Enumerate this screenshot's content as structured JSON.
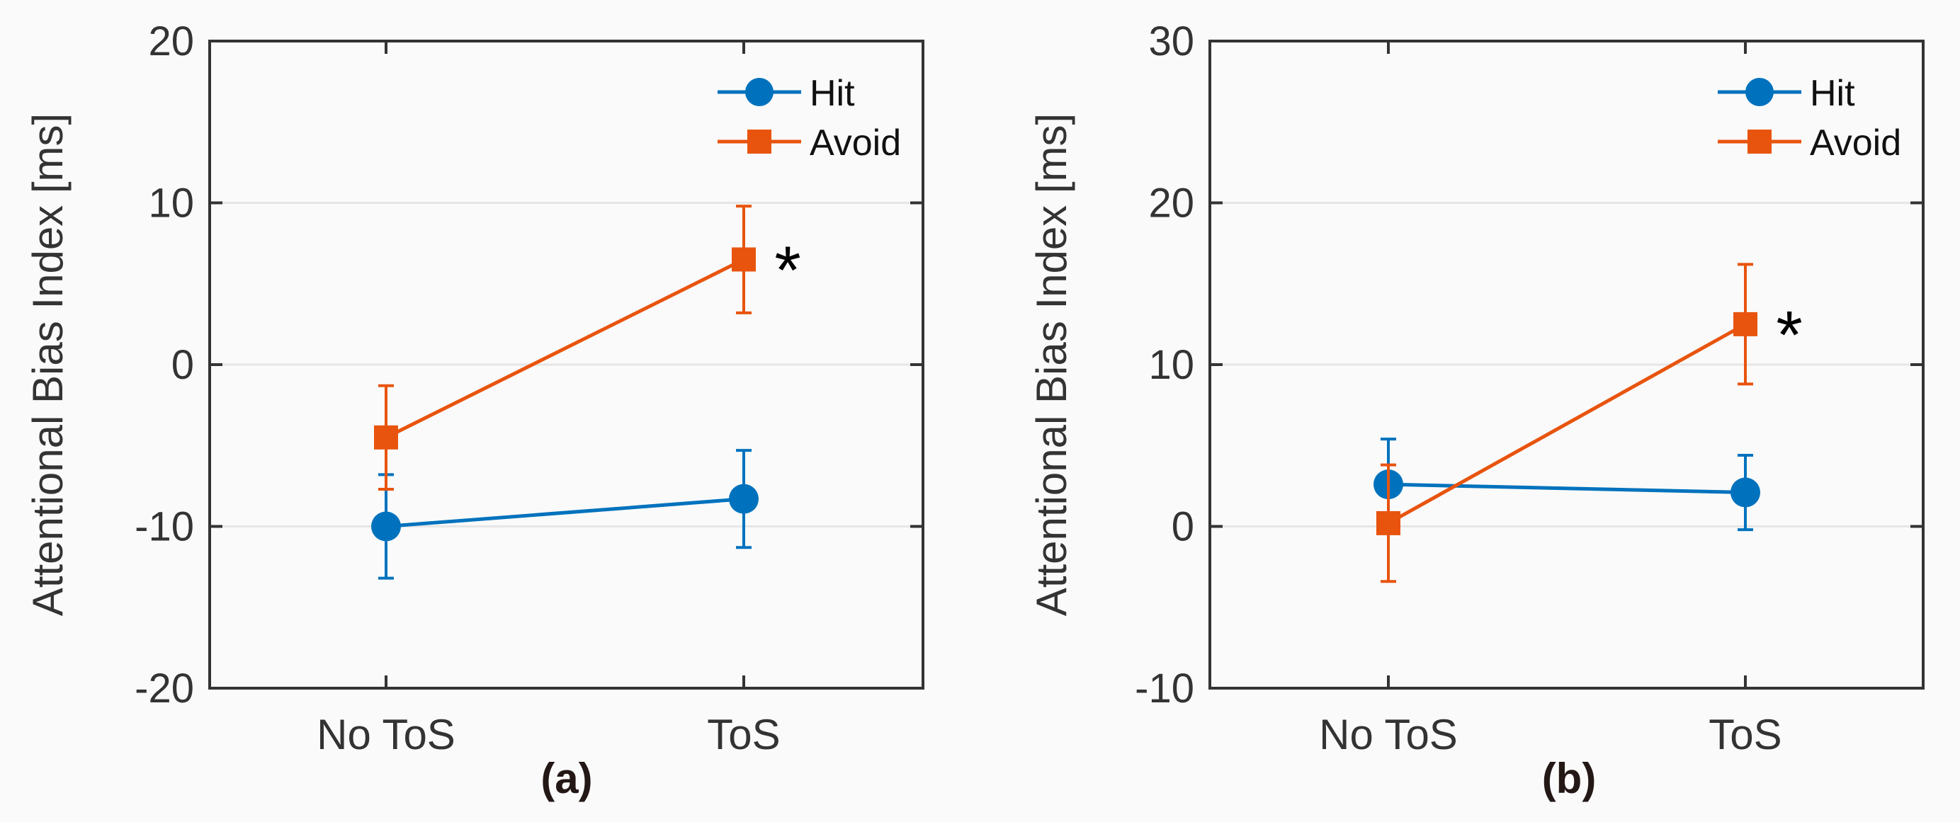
{
  "chart_data": [
    {
      "type": "line",
      "panel_label": "(a)",
      "ylabel": "Attentional Bias Index [ms]",
      "xlabel": "",
      "categories": [
        "No ToS",
        "ToS"
      ],
      "ylim": [
        -20,
        20
      ],
      "yticks": [
        -20,
        -10,
        0,
        10,
        20
      ],
      "grid": "horizontal",
      "legend": "top-right",
      "series": [
        {
          "name": "Hit",
          "marker": "circle",
          "color": "#0072BD",
          "values": [
            -10.0,
            -8.3
          ],
          "errors": [
            3.2,
            3.0
          ]
        },
        {
          "name": "Avoid",
          "marker": "square",
          "color": "#E8540E",
          "values": [
            -4.5,
            6.5
          ],
          "errors": [
            3.2,
            3.3
          ]
        }
      ],
      "annotations": [
        {
          "text": "*",
          "category": "ToS",
          "y": 6.5
        }
      ]
    },
    {
      "type": "line",
      "panel_label": "(b)",
      "ylabel": "Attentional Bias Index [ms]",
      "xlabel": "",
      "categories": [
        "No ToS",
        "ToS"
      ],
      "ylim": [
        -10,
        30
      ],
      "yticks": [
        -10,
        0,
        10,
        20,
        30
      ],
      "grid": "horizontal",
      "legend": "top-right",
      "series": [
        {
          "name": "Hit",
          "marker": "circle",
          "color": "#0072BD",
          "values": [
            2.6,
            2.1
          ],
          "errors": [
            2.8,
            2.3
          ]
        },
        {
          "name": "Avoid",
          "marker": "square",
          "color": "#E8540E",
          "values": [
            0.2,
            12.5
          ],
          "errors": [
            3.6,
            3.7
          ]
        }
      ],
      "annotations": [
        {
          "text": "*",
          "category": "ToS",
          "y": 12.5
        }
      ]
    }
  ]
}
